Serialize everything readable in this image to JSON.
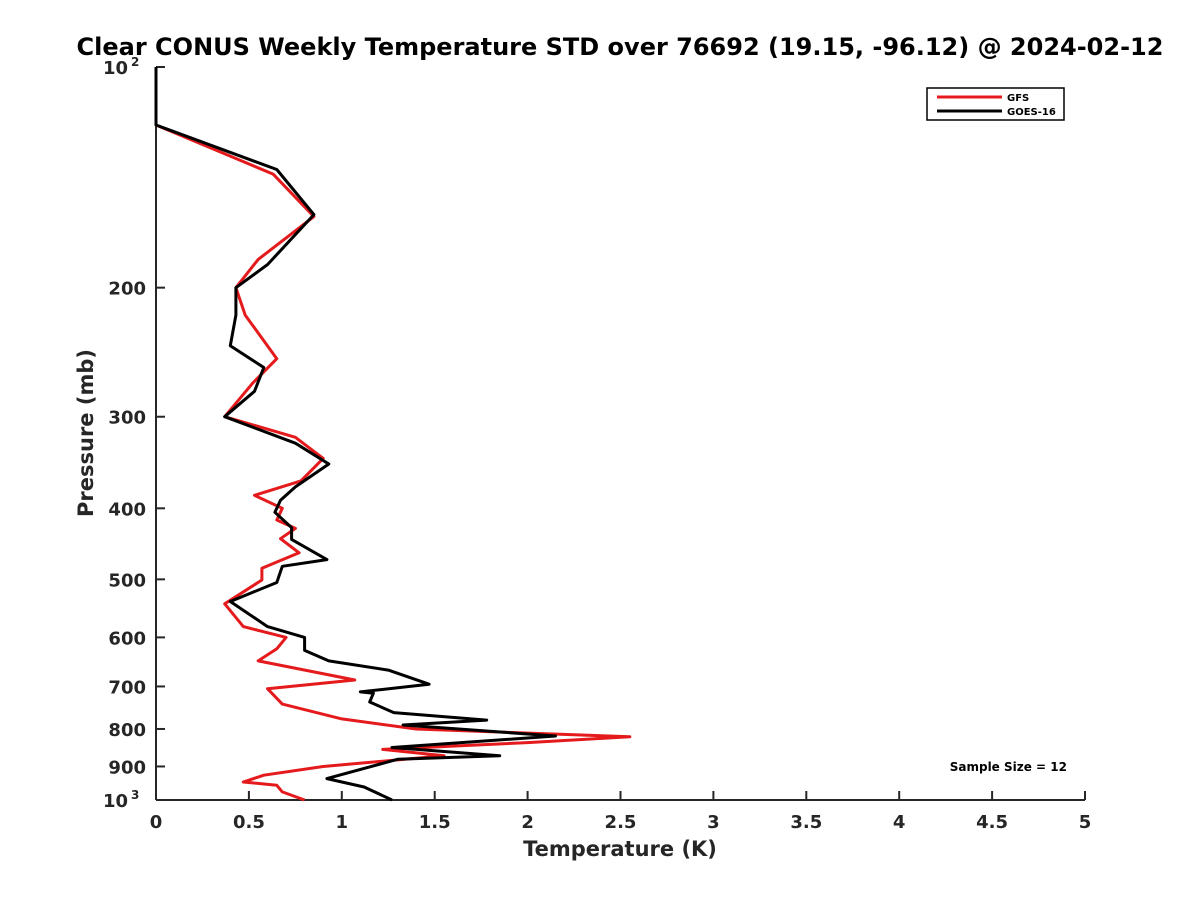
{
  "chart_data": {
    "type": "line",
    "title": "Clear CONUS Weekly Temperature STD over 76692 (19.15, -96.12) @ 2024-02-12",
    "xlabel": "Temperature (K)",
    "ylabel": "Pressure (mb)",
    "xlim": [
      0,
      5
    ],
    "ylim": [
      100,
      1000
    ],
    "yscale": "log",
    "y_reversed": true,
    "x_ticks": [
      0,
      0.5,
      1,
      1.5,
      2,
      2.5,
      3,
      3.5,
      4,
      4.5,
      5
    ],
    "x_tick_labels": [
      "0",
      "0.5",
      "1",
      "1.5",
      "2",
      "2.5",
      "3",
      "3.5",
      "4",
      "4.5",
      "5"
    ],
    "y_ticks": [
      {
        "value": 100,
        "label": "10",
        "exp": "2"
      },
      {
        "value": 200,
        "label": "200"
      },
      {
        "value": 300,
        "label": "300"
      },
      {
        "value": 400,
        "label": "400"
      },
      {
        "value": 500,
        "label": "500"
      },
      {
        "value": 600,
        "label": "600"
      },
      {
        "value": 700,
        "label": "700"
      },
      {
        "value": 800,
        "label": "800"
      },
      {
        "value": 900,
        "label": "900"
      },
      {
        "value": 1000,
        "label": "10",
        "exp": "3"
      }
    ],
    "legend_position": "top-right",
    "annotation": "Sample Size = 12",
    "series": [
      {
        "name": "GFS",
        "color": "#e41a1c",
        "points": [
          [
            0.0,
            100
          ],
          [
            0.0,
            120
          ],
          [
            0.63,
            140
          ],
          [
            0.85,
            160
          ],
          [
            0.55,
            183
          ],
          [
            0.43,
            200
          ],
          [
            0.48,
            218
          ],
          [
            0.65,
            250
          ],
          [
            0.52,
            270
          ],
          [
            0.37,
            300
          ],
          [
            0.75,
            320
          ],
          [
            0.9,
            342
          ],
          [
            0.78,
            367
          ],
          [
            0.53,
            384
          ],
          [
            0.68,
            400
          ],
          [
            0.65,
            415
          ],
          [
            0.75,
            426
          ],
          [
            0.67,
            440
          ],
          [
            0.77,
            460
          ],
          [
            0.57,
            483
          ],
          [
            0.57,
            501
          ],
          [
            0.37,
            540
          ],
          [
            0.47,
            580
          ],
          [
            0.7,
            600
          ],
          [
            0.65,
            622
          ],
          [
            0.55,
            646
          ],
          [
            1.07,
            686
          ],
          [
            0.6,
            705
          ],
          [
            0.68,
            740
          ],
          [
            1.0,
            775
          ],
          [
            1.4,
            800
          ],
          [
            2.55,
            820
          ],
          [
            2.0,
            835
          ],
          [
            1.22,
            853
          ],
          [
            1.55,
            870
          ],
          [
            0.9,
            900
          ],
          [
            0.58,
            925
          ],
          [
            0.47,
            945
          ],
          [
            0.65,
            955
          ],
          [
            0.68,
            975
          ],
          [
            0.8,
            1000
          ]
        ]
      },
      {
        "name": "GOES-16",
        "color": "#000000",
        "points": [
          [
            0.0,
            100
          ],
          [
            0.0,
            120
          ],
          [
            0.65,
            138
          ],
          [
            0.85,
            159
          ],
          [
            0.6,
            186
          ],
          [
            0.43,
            200
          ],
          [
            0.43,
            218
          ],
          [
            0.4,
            240
          ],
          [
            0.58,
            257
          ],
          [
            0.53,
            277
          ],
          [
            0.37,
            300
          ],
          [
            0.75,
            326
          ],
          [
            0.93,
            348
          ],
          [
            0.75,
            374
          ],
          [
            0.67,
            390
          ],
          [
            0.64,
            405
          ],
          [
            0.73,
            425
          ],
          [
            0.73,
            441
          ],
          [
            0.92,
            470
          ],
          [
            0.68,
            480
          ],
          [
            0.65,
            505
          ],
          [
            0.4,
            536
          ],
          [
            0.6,
            580
          ],
          [
            0.8,
            600
          ],
          [
            0.8,
            625
          ],
          [
            0.93,
            646
          ],
          [
            1.25,
            665
          ],
          [
            1.47,
            695
          ],
          [
            1.1,
            712
          ],
          [
            1.17,
            715
          ],
          [
            1.15,
            735
          ],
          [
            1.28,
            760
          ],
          [
            1.78,
            778
          ],
          [
            1.33,
            790
          ],
          [
            2.15,
            818
          ],
          [
            1.27,
            848
          ],
          [
            1.85,
            870
          ],
          [
            1.3,
            880
          ],
          [
            0.92,
            935
          ],
          [
            1.12,
            960
          ],
          [
            1.27,
            1000
          ]
        ]
      }
    ]
  }
}
